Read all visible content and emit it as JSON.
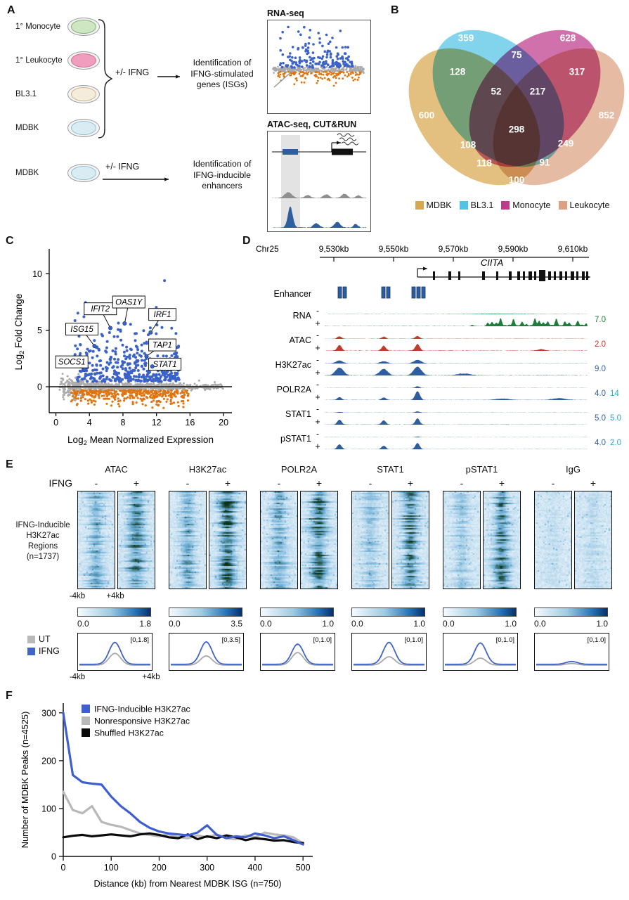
{
  "panels": {
    "A": {
      "label": "A",
      "cell_lines": [
        {
          "name": "1° Monocyte",
          "fill": "#cfe6c3",
          "rim": "#7fae71"
        },
        {
          "name": "1° Leukocyte",
          "fill": "#f19dbd",
          "rim": "#cb6b95"
        },
        {
          "name": "BL3.1",
          "fill": "#f6ecdc",
          "rim": "#c9b384"
        },
        {
          "name": "MDBK",
          "fill": "#d9ecf4",
          "rim": "#8fc0d4"
        }
      ],
      "treatment_label": "+/- IFNG",
      "treatment_label_2": "+/- IFNG",
      "isg_lines": [
        "Identification of",
        "IFNG-stimulated",
        "genes (ISGs)"
      ],
      "enhancer_lines": [
        "Identification of",
        "IFNG-inducible",
        "enhancers"
      ],
      "rna_plot_title": "RNA-seq",
      "atac_plot_title": "ATAC-seq, CUT&RUN",
      "mdbk_row": {
        "name": "MDBK",
        "fill": "#d9ecf4",
        "rim": "#8fc0d4"
      }
    },
    "B": {
      "label": "B",
      "sets": [
        {
          "name": "MDBK",
          "color": "#d8a84f"
        },
        {
          "name": "BL3.1",
          "color": "#52c2e5"
        },
        {
          "name": "Monocyte",
          "color": "#bf3a8b"
        },
        {
          "name": "Leukocyte",
          "color": "#dba180"
        }
      ],
      "regions": [
        {
          "sets": "BL3.1",
          "value": "359"
        },
        {
          "sets": "Monocyte",
          "value": "628"
        },
        {
          "sets": "BL3.1 & Monocyte",
          "value": "75"
        },
        {
          "sets": "MDBK & BL3.1",
          "value": "128"
        },
        {
          "sets": "Monocyte & Leukocyte",
          "value": "317"
        },
        {
          "sets": "MDBK & BL3.1 & Monocyte",
          "value": "52"
        },
        {
          "sets": "BL3.1 & Monocyte & Leukocyte",
          "value": "217"
        },
        {
          "sets": "MDBK",
          "value": "600"
        },
        {
          "sets": "Leukocyte",
          "value": "852"
        },
        {
          "sets": "MDBK & BL3.1 & Monocyte & Leukocyte",
          "value": "298"
        },
        {
          "sets": "MDBK & Monocyte",
          "value": "108"
        },
        {
          "sets": "BL3.1 & Leukocyte",
          "value": "249"
        },
        {
          "sets": "MDBK & Monocyte & Leukocyte",
          "value": "118"
        },
        {
          "sets": "MDBK & BL3.1 & Leukocyte",
          "value": "91"
        },
        {
          "sets": "MDBK & Leukocyte",
          "value": "100"
        }
      ]
    },
    "C": {
      "label": "C"
    },
    "D": {
      "label": "D",
      "chromosome": "Chr25",
      "coordinate_ticks": [
        "9,530kb",
        "9,550kb",
        "9,570kb",
        "9,590kb",
        "9,610kb"
      ],
      "gene_name": "CIITA",
      "enhancer_row_label": "Enhancer",
      "minus_sign": "-",
      "plus_sign": "+",
      "scale2_color": "#2aa5c4",
      "tracks": [
        {
          "name": "RNA",
          "color": "#1f7d3c",
          "scale": "7.0",
          "scale2": ""
        },
        {
          "name": "ATAC",
          "color": "#bf3d2d",
          "scale": "2.0",
          "scale2": ""
        },
        {
          "name": "H3K27ac",
          "color": "#2e5e9e",
          "scale": "9.0",
          "scale2": ""
        },
        {
          "name": "POLR2A",
          "color": "#2e5e9e",
          "scale": "4.0",
          "scale2": "14"
        },
        {
          "name": "STAT1",
          "color": "#2e5e9e",
          "scale": "5.0",
          "scale2": "5.0"
        },
        {
          "name": "pSTAT1",
          "color": "#2e5e9e",
          "scale": "4.0",
          "scale2": "2.0"
        }
      ]
    },
    "E": {
      "label": "E",
      "ifng_row_label": "IFNG",
      "minus_sign": "-",
      "plus_sign": "+",
      "row_label_lines": [
        "IFNG-Inducible",
        "H3K27ac Regions",
        "(n=1737)"
      ],
      "x_window": {
        "min": "-4kb",
        "max": "+4kb"
      },
      "assays": [
        {
          "name": "ATAC",
          "colorbar_min": "0.0",
          "colorbar_max": "1.8",
          "profile_range": "[0,1.8]"
        },
        {
          "name": "H3K27ac",
          "colorbar_min": "0.0",
          "colorbar_max": "3.5",
          "profile_range": "[0,3.5]"
        },
        {
          "name": "POLR2A",
          "colorbar_min": "0.0",
          "colorbar_max": "1.0",
          "profile_range": "[0,1.0]"
        },
        {
          "name": "STAT1",
          "colorbar_min": "0.0",
          "colorbar_max": "1.0",
          "profile_range": "[0,1.0]"
        },
        {
          "name": "pSTAT1",
          "colorbar_min": "0.0",
          "colorbar_max": "1.0",
          "profile_range": "[0,1.0]"
        },
        {
          "name": "IgG",
          "colorbar_min": "0.0",
          "colorbar_max": "1.0",
          "profile_range": "[0,1.0]"
        }
      ],
      "legend": [
        {
          "name": "UT",
          "color": "#b9b9b9"
        },
        {
          "name": "IFNG",
          "color": "#4065c9"
        }
      ]
    },
    "F": {
      "label": "F"
    }
  },
  "chart_data": [
    {
      "panel": "C",
      "type": "scatter",
      "title": "",
      "xlabel": "Log2 Mean Normalized Expression",
      "ylabel": "Log2 Fold Change",
      "xlim": [
        0,
        20
      ],
      "ylim": [
        -2,
        12
      ],
      "x_ticks": [
        0,
        4,
        8,
        12,
        16,
        20
      ],
      "y_ticks": [
        0,
        5,
        10
      ],
      "series": [
        {
          "name": "IFNG-upregulated",
          "color": "#3a62c8",
          "description": "dense cloud of points, log2FC 0.5 to 11, expression 2-16"
        },
        {
          "name": "IFNG-downregulated",
          "color": "#e0750f",
          "description": "points log2FC -0.3 to -1.8, expression 2-16"
        },
        {
          "name": "unchanged",
          "color": "#ababab",
          "description": "dense band around log2FC 0 across full expression range"
        }
      ],
      "labeled_genes": [
        {
          "name": "IFIT2",
          "x": 6.5,
          "y": 5.2
        },
        {
          "name": "OAS1Y",
          "x": 8.2,
          "y": 5.6
        },
        {
          "name": "IRF1",
          "x": 11.3,
          "y": 4.8
        },
        {
          "name": "ISG15",
          "x": 4.6,
          "y": 3.6
        },
        {
          "name": "TAP1",
          "x": 10.8,
          "y": 2.7
        },
        {
          "name": "SOCS1",
          "x": 3.4,
          "y": 1.5
        },
        {
          "name": "STAT1",
          "x": 11.5,
          "y": 1.8
        }
      ]
    },
    {
      "panel": "F",
      "type": "line",
      "xlabel": "Distance (kb) from Nearest MDBK ISG (n=750)",
      "ylabel": "Number of MDBK Peaks (n=4525)",
      "xlim": [
        0,
        500
      ],
      "ylim": [
        0,
        300
      ],
      "x_ticks": [
        0,
        100,
        200,
        300,
        400,
        500
      ],
      "y_ticks": [
        0,
        100,
        200,
        300
      ],
      "x": [
        0,
        20,
        40,
        60,
        80,
        100,
        120,
        140,
        160,
        180,
        200,
        220,
        240,
        260,
        280,
        300,
        320,
        340,
        360,
        380,
        400,
        420,
        440,
        460,
        480,
        500
      ],
      "series": [
        {
          "name": "IFNG-Inducible H3K27ac",
          "color": "#3f5ed0",
          "values": [
            300,
            170,
            155,
            152,
            150,
            125,
            105,
            90,
            72,
            60,
            52,
            48,
            46,
            44,
            50,
            65,
            45,
            38,
            42,
            40,
            48,
            44,
            38,
            42,
            34,
            25
          ]
        },
        {
          "name": "Nonresponsive H3K27ac",
          "color": "#b8b8b8",
          "values": [
            135,
            97,
            90,
            105,
            72,
            66,
            62,
            55,
            48,
            45,
            42,
            46,
            40,
            38,
            44,
            40,
            46,
            38,
            36,
            44,
            40,
            50,
            46,
            44,
            40,
            27
          ]
        },
        {
          "name": "Shuffled H3K27ac",
          "color": "#0a0a0a",
          "values": [
            40,
            43,
            45,
            42,
            44,
            46,
            44,
            42,
            46,
            48,
            45,
            40,
            38,
            46,
            36,
            42,
            38,
            44,
            40,
            34,
            38,
            36,
            33,
            34,
            30,
            28
          ]
        }
      ],
      "legend_position": "top-left-inside"
    }
  ]
}
